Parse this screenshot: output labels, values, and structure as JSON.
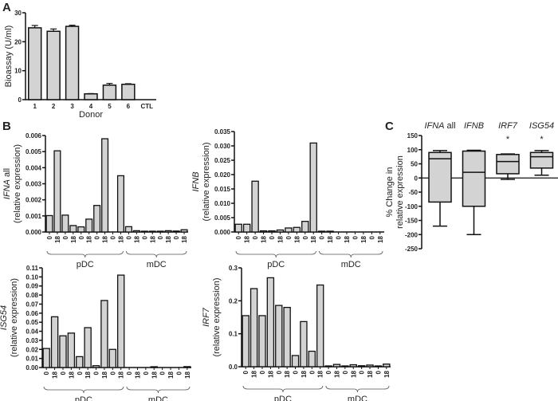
{
  "colors": {
    "bar_fill": "#d3d3d3",
    "stroke": "#111111"
  },
  "chart_data": [
    {
      "panel": "A",
      "type": "bar",
      "categories": [
        "1",
        "2",
        "3",
        "4",
        "5",
        "6",
        "CTL"
      ],
      "values": [
        24.8,
        23.6,
        25.3,
        2.0,
        5.0,
        5.3,
        0
      ],
      "errors": [
        0.8,
        0.8,
        0.4,
        0.1,
        0.6,
        0.2,
        0
      ],
      "xlabel": "Donor",
      "ylabel": "Bioassay (U/ml)",
      "ylim": [
        0,
        30
      ],
      "yticks": [
        "0",
        "10",
        "20",
        "30"
      ]
    },
    {
      "panel": "B",
      "type": "bar",
      "ylabel_italic": "IFNA",
      "ylabel_rest": " all",
      "ylabel2": "(relative expression)",
      "categories": [
        "0",
        "18",
        "0",
        "18",
        "0",
        "18",
        "0",
        "18",
        "0",
        "18",
        "0",
        "18",
        "0",
        "18",
        "0",
        "18",
        "0",
        "18"
      ],
      "groups": [
        {
          "label": "pDC",
          "count": 10
        },
        {
          "label": "mDC",
          "count": 8
        }
      ],
      "values": [
        0.00102,
        0.00505,
        0.00105,
        0.0004,
        0.00032,
        0.0008,
        0.00165,
        0.0058,
        0,
        0.0035,
        0.00033,
        8e-05,
        4e-05,
        2e-05,
        2e-05,
        8e-05,
        6e-05,
        0.00014
      ],
      "ylim": [
        0,
        0.006
      ],
      "yticks": [
        "0.000",
        "0.001",
        "0.002",
        "0.003",
        "0.004",
        "0.005",
        "0.006"
      ]
    },
    {
      "type": "bar",
      "ylabel_italic": "IFNB",
      "ylabel_rest": "",
      "ylabel2": "(relative expression)",
      "categories": [
        "0",
        "18",
        "0",
        "18",
        "0",
        "18",
        "0",
        "18",
        "0",
        "18",
        "0",
        "18",
        "0",
        "18",
        "0",
        "18",
        "0",
        "18"
      ],
      "groups": [
        {
          "label": "pDC",
          "count": 10
        },
        {
          "label": "mDC",
          "count": 8
        }
      ],
      "values": [
        0.0027,
        0.0027,
        0.0177,
        0.0004,
        0.0004,
        0.0007,
        0.0014,
        0.0016,
        0.0037,
        0.031,
        0.0002,
        0.0002,
        0,
        0,
        0,
        0,
        0,
        0
      ],
      "ylim": [
        0,
        0.035
      ],
      "yticks": [
        "0.000",
        "0.005",
        "0.010",
        "0.015",
        "0.020",
        "0.025",
        "0.030",
        "0.035"
      ]
    },
    {
      "type": "bar",
      "ylabel_italic": "ISG54",
      "ylabel_rest": "",
      "ylabel2": "(relative expression)",
      "categories": [
        "0",
        "18",
        "0",
        "18",
        "0",
        "18",
        "0",
        "18",
        "0",
        "18",
        "0",
        "18",
        "0",
        "18",
        "0",
        "18",
        "0",
        "18"
      ],
      "groups": [
        {
          "label": "pDC",
          "count": 10
        },
        {
          "label": "mDC",
          "count": 8
        }
      ],
      "values": [
        0.021,
        0.056,
        0.035,
        0.038,
        0.012,
        0.044,
        0.002,
        0.074,
        0.02,
        0.102,
        0,
        0,
        0,
        0.0005,
        0,
        0,
        0,
        0.001
      ],
      "ylim": [
        0,
        0.11
      ],
      "yticks": [
        "0.00",
        "0.01",
        "0.02",
        "0.03",
        "0.04",
        "0.05",
        "0.06",
        "0.07",
        "0.08",
        "0.09",
        "0.10",
        "0.11"
      ]
    },
    {
      "type": "bar",
      "ylabel_italic": "IRF7",
      "ylabel_rest": "",
      "ylabel2": "(relative expression)",
      "categories": [
        "0",
        "18",
        "0",
        "18",
        "0",
        "18",
        "0",
        "18",
        "0",
        "18",
        "0",
        "18",
        "0",
        "18",
        "0",
        "18",
        "0",
        "18"
      ],
      "groups": [
        {
          "label": "pDC",
          "count": 10
        },
        {
          "label": "mDC",
          "count": 8
        }
      ],
      "values": [
        0.155,
        0.237,
        0.155,
        0.27,
        0.186,
        0.18,
        0.034,
        0.137,
        0.047,
        0.248,
        0.002,
        0.007,
        0.002,
        0.006,
        0.003,
        0.005,
        0.002,
        0.008
      ],
      "ylim": [
        0,
        0.3
      ],
      "yticks": [
        "0.0",
        "0.1",
        "0.2",
        "0.3"
      ]
    },
    {
      "panel": "C",
      "type": "box",
      "ylabel": "% Change in",
      "ylabel2": "relative expression",
      "ylim": [
        -250,
        150
      ],
      "yticks": [
        "-250",
        "-200",
        "-150",
        "-100",
        "-50",
        "0",
        "50",
        "100",
        "150"
      ],
      "boxes": [
        {
          "label_italic": "IFNA",
          "label_rest": " all",
          "min": -170,
          "q1": -85,
          "median": 68,
          "q3": 90,
          "max": 97,
          "marker": ""
        },
        {
          "label_italic": "IFNB",
          "label_rest": "",
          "min": -200,
          "q1": -100,
          "median": 20,
          "q3": 95,
          "max": 98,
          "marker": ""
        },
        {
          "label_italic": "IRF7",
          "label_rest": "",
          "min": -5,
          "q1": 15,
          "median": 58,
          "q3": 83,
          "max": 85,
          "marker": "*"
        },
        {
          "label_italic": "ISG54",
          "label_rest": "",
          "min": 10,
          "q1": 35,
          "median": 75,
          "q3": 90,
          "max": 97,
          "marker": "*"
        }
      ]
    }
  ]
}
